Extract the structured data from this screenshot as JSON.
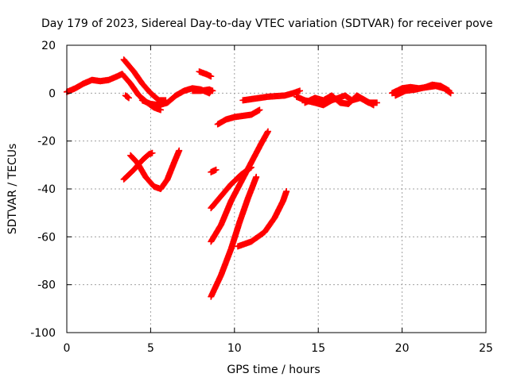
{
  "chart_data": {
    "type": "scatter",
    "title": "Day 179 of 2023, Sidereal Day-to-day VTEC variation (SDTVAR) for receiver pove",
    "xlabel": "GPS time / hours",
    "ylabel": "SDTVAR / TECUs",
    "xlim": [
      0,
      25
    ],
    "ylim": [
      -100,
      20
    ],
    "xticks": [
      0,
      5,
      10,
      15,
      20,
      25
    ],
    "yticks": [
      -100,
      -80,
      -60,
      -40,
      -20,
      0,
      20
    ],
    "grid": true,
    "marker": "plus",
    "color": "#ff0000",
    "series": [
      {
        "points": [
          [
            0.0,
            0.5
          ],
          [
            0.5,
            2
          ],
          [
            1.0,
            4
          ],
          [
            1.5,
            5.5
          ],
          [
            2.0,
            5
          ],
          [
            2.5,
            5.5
          ],
          [
            3.0,
            7
          ],
          [
            3.3,
            8
          ]
        ]
      },
      {
        "points": [
          [
            3.4,
            14
          ],
          [
            4.0,
            9
          ],
          [
            4.5,
            4
          ],
          [
            5.0,
            0
          ],
          [
            5.5,
            -3
          ],
          [
            5.9,
            -3
          ]
        ]
      },
      {
        "points": [
          [
            3.3,
            8
          ],
          [
            3.8,
            4
          ],
          [
            4.3,
            -1
          ],
          [
            4.8,
            -4
          ],
          [
            5.2,
            -6
          ],
          [
            5.6,
            -7
          ]
        ]
      },
      {
        "points": [
          [
            3.5,
            -1
          ],
          [
            3.7,
            -2
          ]
        ]
      },
      {
        "points": [
          [
            4.5,
            -3
          ],
          [
            5.0,
            -4.5
          ],
          [
            5.5,
            -5
          ],
          [
            6.0,
            -4
          ],
          [
            6.5,
            -1
          ],
          [
            7.0,
            1
          ],
          [
            7.5,
            2
          ],
          [
            8.0,
            1.5
          ],
          [
            8.5,
            0
          ],
          [
            8.6,
            1
          ]
        ]
      },
      {
        "points": [
          [
            7.5,
            1
          ],
          [
            8.0,
            1
          ],
          [
            8.5,
            1.5
          ],
          [
            8.7,
            1
          ]
        ]
      },
      {
        "points": [
          [
            7.9,
            9
          ],
          [
            8.3,
            8
          ],
          [
            8.6,
            7
          ]
        ]
      },
      {
        "points": [
          [
            9.0,
            -13
          ],
          [
            9.5,
            -11
          ],
          [
            10.0,
            -10
          ],
          [
            10.5,
            -9.5
          ],
          [
            11.0,
            -9
          ],
          [
            11.5,
            -7
          ]
        ]
      },
      {
        "points": [
          [
            3.4,
            -36
          ],
          [
            4.0,
            -32
          ],
          [
            4.5,
            -28
          ],
          [
            4.9,
            -25.5
          ],
          [
            5.1,
            -25
          ]
        ]
      },
      {
        "points": [
          [
            3.8,
            -26
          ],
          [
            4.2,
            -29
          ],
          [
            4.7,
            -35
          ],
          [
            5.2,
            -39
          ],
          [
            5.6,
            -40
          ],
          [
            6.0,
            -36
          ],
          [
            6.4,
            -29
          ],
          [
            6.7,
            -24
          ]
        ]
      },
      {
        "points": [
          [
            8.6,
            -33
          ],
          [
            8.9,
            -32
          ]
        ]
      },
      {
        "points": [
          [
            8.6,
            -48
          ],
          [
            9.2,
            -43
          ],
          [
            9.8,
            -38
          ],
          [
            10.4,
            -34
          ],
          [
            11.0,
            -31
          ]
        ]
      },
      {
        "points": [
          [
            8.6,
            -62
          ],
          [
            9.2,
            -55
          ],
          [
            9.8,
            -45
          ],
          [
            10.4,
            -37
          ],
          [
            11.0,
            -29
          ],
          [
            11.6,
            -21
          ],
          [
            12.0,
            -16
          ]
        ]
      },
      {
        "points": [
          [
            8.6,
            -85
          ],
          [
            9.2,
            -76
          ],
          [
            9.8,
            -65
          ],
          [
            10.3,
            -54
          ],
          [
            10.8,
            -44
          ],
          [
            11.3,
            -35
          ]
        ]
      },
      {
        "points": [
          [
            10.2,
            -64
          ],
          [
            11.0,
            -62
          ],
          [
            11.8,
            -58
          ],
          [
            12.4,
            -52
          ],
          [
            12.9,
            -45
          ],
          [
            13.1,
            -41
          ]
        ]
      },
      {
        "points": [
          [
            10.5,
            -3
          ],
          [
            11.0,
            -2.5
          ],
          [
            12.0,
            -1.5
          ],
          [
            13.0,
            -1
          ],
          [
            13.5,
            0
          ],
          [
            13.9,
            1
          ]
        ]
      },
      {
        "points": [
          [
            13.7,
            -1.5
          ],
          [
            14.2,
            -3
          ],
          [
            14.8,
            -4
          ],
          [
            15.3,
            -5
          ],
          [
            15.8,
            -3
          ],
          [
            16.2,
            -2
          ],
          [
            16.6,
            -1
          ],
          [
            17.0,
            -3
          ],
          [
            17.5,
            -2
          ],
          [
            18.0,
            -4
          ],
          [
            18.5,
            -4
          ]
        ]
      },
      {
        "points": [
          [
            14.2,
            -4
          ],
          [
            14.8,
            -2
          ],
          [
            15.3,
            -3
          ],
          [
            15.8,
            -1
          ],
          [
            16.3,
            -4
          ],
          [
            16.8,
            -4.5
          ],
          [
            17.3,
            -1
          ],
          [
            17.8,
            -3
          ],
          [
            18.3,
            -5
          ]
        ]
      },
      {
        "points": [
          [
            19.4,
            0
          ],
          [
            20.0,
            2
          ],
          [
            20.5,
            2.5
          ],
          [
            21.0,
            2
          ],
          [
            21.5,
            2.5
          ],
          [
            22.0,
            3
          ],
          [
            22.5,
            2
          ],
          [
            22.9,
            0
          ]
        ]
      },
      {
        "points": [
          [
            19.6,
            -1
          ],
          [
            20.2,
            1
          ],
          [
            20.8,
            1.5
          ],
          [
            21.4,
            2.5
          ],
          [
            21.8,
            3.5
          ],
          [
            22.3,
            3
          ],
          [
            22.8,
            1
          ]
        ]
      }
    ]
  }
}
